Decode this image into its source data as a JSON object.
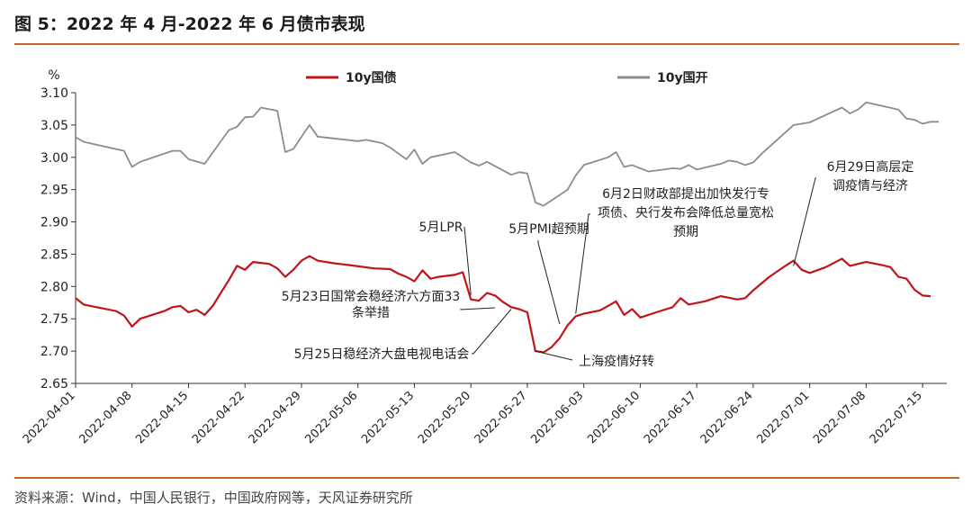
{
  "figure": {
    "title": "图 5：2022 年 4 月-2022 年 6 月债市表现",
    "source": "资料来源：Wind，中国人民银行，中国政府网等，天风证券研究所",
    "colors": {
      "rule": "#c86428",
      "series_red": "#c0141b",
      "series_gray": "#8c8c8c"
    }
  },
  "chart_data": {
    "type": "line",
    "ylabel": "%",
    "ylim": [
      2.65,
      3.1
    ],
    "yticks": [
      3.1,
      3.05,
      3.0,
      2.95,
      2.9,
      2.85,
      2.8,
      2.75,
      2.7,
      2.65
    ],
    "xlim": [
      "2022-04-01",
      "2022-07-18"
    ],
    "xticks": [
      "2022-04-01",
      "2022-04-08",
      "2022-04-15",
      "2022-04-22",
      "2022-04-29",
      "2022-05-06",
      "2022-05-13",
      "2022-05-20",
      "2022-05-27",
      "2022-06-03",
      "2022-06-10",
      "2022-06-17",
      "2022-06-24",
      "2022-07-01",
      "2022-07-08",
      "2022-07-15"
    ],
    "legend_position": "top",
    "series": [
      {
        "name": "10y国债",
        "color": "#c0141b",
        "points": [
          [
            "2022-04-01",
            2.782
          ],
          [
            "2022-04-02",
            2.772
          ],
          [
            "2022-04-06",
            2.762
          ],
          [
            "2022-04-07",
            2.755
          ],
          [
            "2022-04-08",
            2.738
          ],
          [
            "2022-04-09",
            2.75
          ],
          [
            "2022-04-12",
            2.762
          ],
          [
            "2022-04-13",
            2.768
          ],
          [
            "2022-04-14",
            2.77
          ],
          [
            "2022-04-15",
            2.76
          ],
          [
            "2022-04-16",
            2.764
          ],
          [
            "2022-04-17",
            2.756
          ],
          [
            "2022-04-18",
            2.77
          ],
          [
            "2022-04-19",
            2.79
          ],
          [
            "2022-04-20",
            2.81
          ],
          [
            "2022-04-21",
            2.832
          ],
          [
            "2022-04-22",
            2.826
          ],
          [
            "2022-04-23",
            2.838
          ],
          [
            "2022-04-25",
            2.835
          ],
          [
            "2022-04-26",
            2.828
          ],
          [
            "2022-04-27",
            2.815
          ],
          [
            "2022-04-28",
            2.826
          ],
          [
            "2022-04-29",
            2.84
          ],
          [
            "2022-04-30",
            2.847
          ],
          [
            "2022-05-01",
            2.84
          ],
          [
            "2022-05-03",
            2.836
          ],
          [
            "2022-05-05",
            2.833
          ],
          [
            "2022-05-08",
            2.828
          ],
          [
            "2022-05-10",
            2.827
          ],
          [
            "2022-05-11",
            2.82
          ],
          [
            "2022-05-12",
            2.815
          ],
          [
            "2022-05-13",
            2.808
          ],
          [
            "2022-05-14",
            2.825
          ],
          [
            "2022-05-15",
            2.812
          ],
          [
            "2022-05-16",
            2.815
          ],
          [
            "2022-05-18",
            2.818
          ],
          [
            "2022-05-19",
            2.822
          ],
          [
            "2022-05-20",
            2.78
          ],
          [
            "2022-05-21",
            2.778
          ],
          [
            "2022-05-22",
            2.79
          ],
          [
            "2022-05-23",
            2.786
          ],
          [
            "2022-05-24",
            2.776
          ],
          [
            "2022-05-25",
            2.768
          ],
          [
            "2022-05-26",
            2.765
          ],
          [
            "2022-05-27",
            2.76
          ],
          [
            "2022-05-28",
            2.7
          ],
          [
            "2022-05-29",
            2.698
          ],
          [
            "2022-05-30",
            2.706
          ],
          [
            "2022-05-31",
            2.72
          ],
          [
            "2022-06-01",
            2.74
          ],
          [
            "2022-06-02",
            2.754
          ],
          [
            "2022-06-03",
            2.758
          ],
          [
            "2022-06-05",
            2.763
          ],
          [
            "2022-06-06",
            2.77
          ],
          [
            "2022-06-07",
            2.777
          ],
          [
            "2022-06-08",
            2.756
          ],
          [
            "2022-06-09",
            2.765
          ],
          [
            "2022-06-10",
            2.752
          ],
          [
            "2022-06-12",
            2.76
          ],
          [
            "2022-06-14",
            2.768
          ],
          [
            "2022-06-15",
            2.782
          ],
          [
            "2022-06-16",
            2.772
          ],
          [
            "2022-06-18",
            2.777
          ],
          [
            "2022-06-20",
            2.785
          ],
          [
            "2022-06-22",
            2.78
          ],
          [
            "2022-06-23",
            2.782
          ],
          [
            "2022-06-24",
            2.794
          ],
          [
            "2022-06-26",
            2.815
          ],
          [
            "2022-06-28",
            2.832
          ],
          [
            "2022-06-29",
            2.84
          ],
          [
            "2022-06-30",
            2.826
          ],
          [
            "2022-07-01",
            2.821
          ],
          [
            "2022-07-03",
            2.83
          ],
          [
            "2022-07-05",
            2.843
          ],
          [
            "2022-07-06",
            2.832
          ],
          [
            "2022-07-07",
            2.835
          ],
          [
            "2022-07-08",
            2.838
          ],
          [
            "2022-07-10",
            2.833
          ],
          [
            "2022-07-11",
            2.83
          ],
          [
            "2022-07-12",
            2.815
          ],
          [
            "2022-07-13",
            2.812
          ],
          [
            "2022-07-14",
            2.795
          ],
          [
            "2022-07-15",
            2.786
          ],
          [
            "2022-07-16",
            2.785
          ]
        ]
      },
      {
        "name": "10y国开",
        "color": "#8c8c8c",
        "points": [
          [
            "2022-04-01",
            3.031
          ],
          [
            "2022-04-02",
            3.024
          ],
          [
            "2022-04-07",
            3.01
          ],
          [
            "2022-04-08",
            2.985
          ],
          [
            "2022-04-09",
            2.993
          ],
          [
            "2022-04-13",
            3.01
          ],
          [
            "2022-04-14",
            3.01
          ],
          [
            "2022-04-15",
            2.997
          ],
          [
            "2022-04-17",
            2.99
          ],
          [
            "2022-04-20",
            3.042
          ],
          [
            "2022-04-21",
            3.047
          ],
          [
            "2022-04-22",
            3.062
          ],
          [
            "2022-04-23",
            3.063
          ],
          [
            "2022-04-24",
            3.077
          ],
          [
            "2022-04-26",
            3.072
          ],
          [
            "2022-04-27",
            3.008
          ],
          [
            "2022-04-28",
            3.013
          ],
          [
            "2022-04-30",
            3.05
          ],
          [
            "2022-05-01",
            3.032
          ],
          [
            "2022-05-06",
            3.025
          ],
          [
            "2022-05-07",
            3.027
          ],
          [
            "2022-05-09",
            3.022
          ],
          [
            "2022-05-10",
            3.015
          ],
          [
            "2022-05-12",
            2.997
          ],
          [
            "2022-05-13",
            3.012
          ],
          [
            "2022-05-14",
            2.99
          ],
          [
            "2022-05-15",
            3.0
          ],
          [
            "2022-05-18",
            3.008
          ],
          [
            "2022-05-19",
            3.0
          ],
          [
            "2022-05-20",
            2.992
          ],
          [
            "2022-05-21",
            2.987
          ],
          [
            "2022-05-22",
            2.993
          ],
          [
            "2022-05-25",
            2.973
          ],
          [
            "2022-05-26",
            2.977
          ],
          [
            "2022-05-27",
            2.975
          ],
          [
            "2022-05-28",
            2.93
          ],
          [
            "2022-05-29",
            2.925
          ],
          [
            "2022-06-01",
            2.95
          ],
          [
            "2022-06-02",
            2.972
          ],
          [
            "2022-06-03",
            2.988
          ],
          [
            "2022-06-06",
            3.0
          ],
          [
            "2022-06-07",
            3.008
          ],
          [
            "2022-06-08",
            2.985
          ],
          [
            "2022-06-09",
            2.988
          ],
          [
            "2022-06-11",
            2.978
          ],
          [
            "2022-06-14",
            2.983
          ],
          [
            "2022-06-15",
            2.982
          ],
          [
            "2022-06-16",
            2.988
          ],
          [
            "2022-06-17",
            2.981
          ],
          [
            "2022-06-20",
            2.99
          ],
          [
            "2022-06-21",
            2.995
          ],
          [
            "2022-06-22",
            2.993
          ],
          [
            "2022-06-23",
            2.988
          ],
          [
            "2022-06-24",
            2.992
          ],
          [
            "2022-06-25",
            3.005
          ],
          [
            "2022-06-29",
            3.05
          ],
          [
            "2022-06-30",
            3.052
          ],
          [
            "2022-07-01",
            3.054
          ],
          [
            "2022-07-05",
            3.077
          ],
          [
            "2022-07-06",
            3.068
          ],
          [
            "2022-07-07",
            3.074
          ],
          [
            "2022-07-08",
            3.085
          ],
          [
            "2022-07-12",
            3.074
          ],
          [
            "2022-07-13",
            3.06
          ],
          [
            "2022-07-14",
            3.058
          ],
          [
            "2022-07-15",
            3.052
          ],
          [
            "2022-07-16",
            3.055
          ],
          [
            "2022-07-17",
            3.055
          ]
        ]
      }
    ],
    "annotations": [
      {
        "lines": [
          "5月LPR"
        ],
        "date": "2022-05-20",
        "value": 2.787
      },
      {
        "lines": [
          "5月23日国常会稳经济六方面33",
          "条举措"
        ],
        "date": "2022-05-23",
        "value": 2.767
      },
      {
        "lines": [
          "5月25日稳经济大盘电视电话会"
        ],
        "date": "2022-05-25",
        "value": 2.765
      },
      {
        "lines": [
          "5月PMI超预期"
        ],
        "date": "2022-05-31",
        "value": 2.742
      },
      {
        "lines": [
          "上海疫情好转"
        ],
        "date": "2022-05-28",
        "value": 2.7
      },
      {
        "lines": [
          "6月2日财政部提出加快发行专",
          "项债、央行发布会降低总量宽松",
          "预期"
        ],
        "date": "2022-06-02",
        "value": 2.758
      },
      {
        "lines": [
          "6月29日高层定",
          "调疫情与经济"
        ],
        "date": "2022-06-29",
        "value": 2.832
      }
    ]
  }
}
